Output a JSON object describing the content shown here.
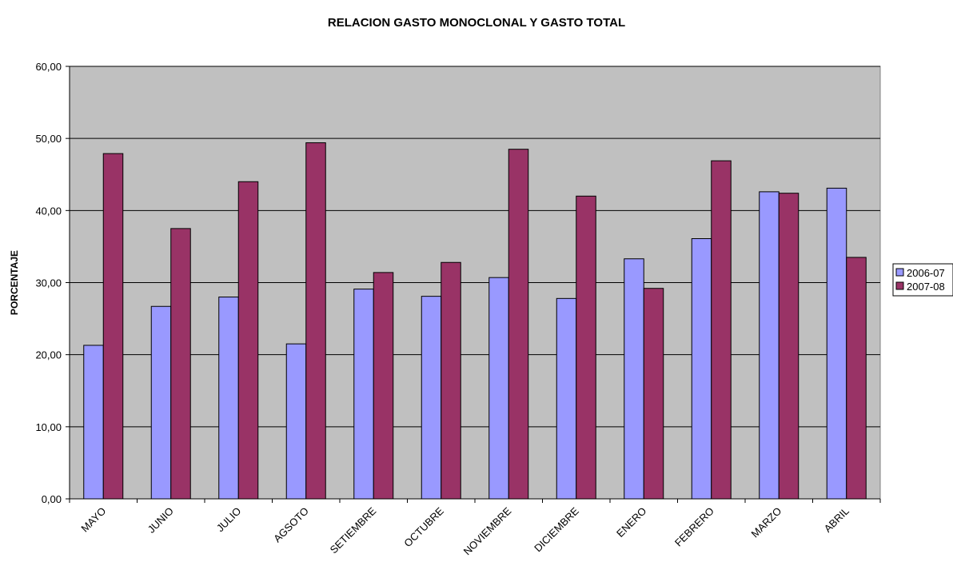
{
  "chart_data": {
    "type": "bar",
    "title": "RELACION GASTO MONOCLONAL Y GASTO TOTAL",
    "xlabel": "",
    "ylabel": "PORCENTAJE",
    "ylim": [
      0,
      60
    ],
    "yticks": [
      "0,00",
      "10,00",
      "20,00",
      "30,00",
      "40,00",
      "50,00",
      "60,00"
    ],
    "grid": true,
    "legend_position": "right",
    "categories": [
      "MAYO",
      "JUNIO",
      "JULIO",
      "AGSOTO",
      "SETIEMBRE",
      "OCTUBRE",
      "NOVIEMBRE",
      "DICIEMBRE",
      "ENERO",
      "FEBRERO",
      "MARZO",
      "ABRIL"
    ],
    "series": [
      {
        "name": "2006-07",
        "color": "#9999FF",
        "values": [
          21.3,
          26.7,
          28.0,
          21.5,
          29.1,
          28.1,
          30.7,
          27.8,
          33.3,
          36.1,
          42.6,
          43.1
        ]
      },
      {
        "name": "2007-08",
        "color": "#993366",
        "values": [
          47.9,
          37.5,
          44.0,
          49.4,
          31.4,
          32.8,
          48.5,
          42.0,
          29.2,
          46.9,
          42.4,
          33.5
        ]
      }
    ],
    "plot_background": "#C0C0C0"
  }
}
